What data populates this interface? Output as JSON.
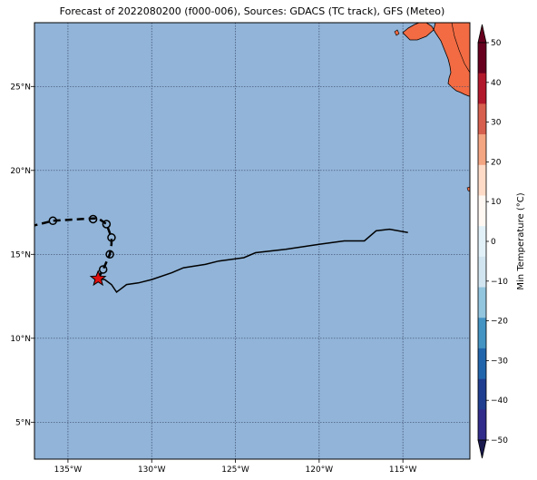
{
  "title": "Forecast of 2022080200 (f000-006), Sources: GDACS (TC track), GFS (Meteo)",
  "map": {
    "lon_range": [
      -137,
      -111
    ],
    "lat_range": [
      2.8,
      28.8
    ],
    "x_ticks": [
      {
        "lon": -135,
        "label": "135°W"
      },
      {
        "lon": -130,
        "label": "130°W"
      },
      {
        "lon": -125,
        "label": "125°W"
      },
      {
        "lon": -120,
        "label": "120°W"
      },
      {
        "lon": -115,
        "label": "115°W"
      }
    ],
    "y_ticks": [
      {
        "lat": 5,
        "label": "5°N"
      },
      {
        "lat": 10,
        "label": "10°N"
      },
      {
        "lat": 15,
        "label": "15°N"
      },
      {
        "lat": 20,
        "label": "20°N"
      },
      {
        "lat": 25,
        "label": "25°N"
      }
    ],
    "ocean_color": "#91b4d8",
    "land_color": "#f26b43"
  },
  "past_track": [
    [
      -114.7,
      16.3
    ],
    [
      -115.8,
      16.5
    ],
    [
      -116.6,
      16.4
    ],
    [
      -117.3,
      15.8
    ],
    [
      -118.5,
      15.8
    ],
    [
      -120.0,
      15.6
    ],
    [
      -122.0,
      15.3
    ],
    [
      -123.8,
      15.1
    ],
    [
      -124.5,
      14.8
    ],
    [
      -126.0,
      14.6
    ],
    [
      -126.8,
      14.4
    ],
    [
      -128.1,
      14.2
    ],
    [
      -128.8,
      13.9
    ],
    [
      -130.0,
      13.5
    ],
    [
      -130.8,
      13.3
    ],
    [
      -131.5,
      13.2
    ],
    [
      -131.9,
      12.9
    ],
    [
      -132.1,
      12.75
    ],
    [
      -132.4,
      13.2
    ],
    [
      -132.8,
      13.5
    ],
    [
      -133.3,
      13.55
    ]
  ],
  "current_position": [
    -133.2,
    13.55
  ],
  "forecast_points": [
    [
      -132.9,
      14.1
    ],
    [
      -132.5,
      15.0
    ],
    [
      -132.4,
      16.0
    ],
    [
      -132.7,
      16.8
    ],
    [
      -133.5,
      17.1
    ],
    [
      -135.9,
      17.0
    ]
  ],
  "forecast_track": [
    [
      -133.2,
      13.55
    ],
    [
      -132.9,
      14.1
    ],
    [
      -132.5,
      15.0
    ],
    [
      -132.4,
      15.6
    ],
    [
      -132.4,
      16.0
    ],
    [
      -132.7,
      16.8
    ],
    [
      -133.2,
      17.15
    ],
    [
      -134.2,
      17.1
    ],
    [
      -135.9,
      17.0
    ],
    [
      -137.5,
      16.6
    ],
    [
      -138.5,
      16.45
    ]
  ],
  "colorbar": {
    "label": "Min Temperature (°C)",
    "ticks": [
      "50",
      "40",
      "30",
      "20",
      "10",
      "0",
      "−10",
      "−20",
      "−30",
      "−40",
      "−50"
    ],
    "colors": [
      "#67001f",
      "#b2182b",
      "#d6604d",
      "#f4a582",
      "#fddbc7",
      "#fff7f2",
      "#e1f1f7",
      "#d1e5f0",
      "#92c5de",
      "#4393c3",
      "#2166ac",
      "#1f3e8f",
      "#312b8a"
    ],
    "top_arrow_color": "#67001f",
    "bottom_arrow_color": "#1a1a4f"
  }
}
